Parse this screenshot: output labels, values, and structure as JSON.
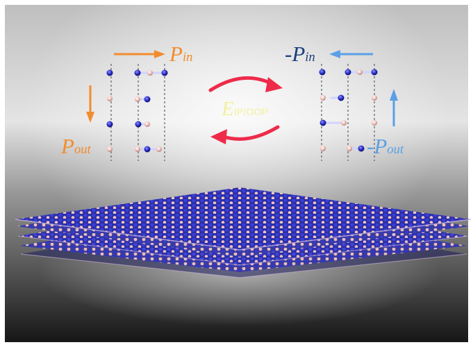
{
  "colors": {
    "orange": "#f28c2e",
    "dark_blue": "#1b3f7a",
    "light_blue": "#5b9fe6",
    "field_text": "#f2f09a",
    "switch_arrow": "#ee2b4a",
    "nitrogen_atom": "#2a2fc4",
    "boron_atom": "#f1c4c0"
  },
  "labels": {
    "p_in": {
      "main": "P",
      "sub": "in"
    },
    "p_out": {
      "main": "P",
      "sub": "out"
    },
    "neg_p_in": {
      "sign": "-",
      "main": "P",
      "sub": "in"
    },
    "neg_p_out": {
      "sign": "-",
      "main": "P",
      "sub": "out"
    },
    "field": {
      "main": "E",
      "sub": "IP/OOP"
    }
  },
  "icons": {
    "left_structure": "bn-stacking-left-icon",
    "right_structure": "bn-stacking-right-icon",
    "switch_arrows": "cycle-arrows-icon",
    "lattice": "hbn-lattice-layers-icon"
  }
}
